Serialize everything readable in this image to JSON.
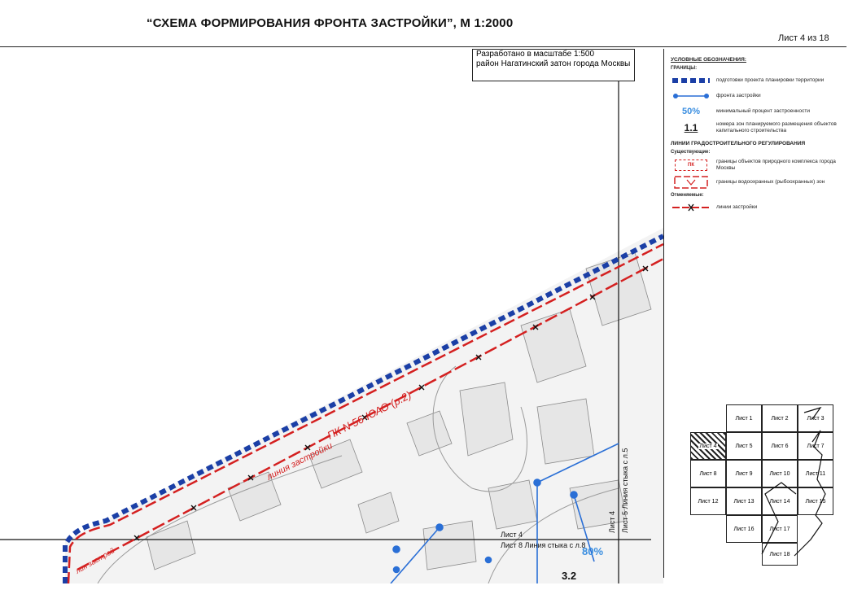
{
  "header": {
    "title": "“СХЕМА ФОРМИРОВАНИЯ ФРОНТА ЗАСТРОЙКИ”, М 1:2000",
    "sheet_number": "Лист 4 из 18"
  },
  "info_box": {
    "line1": "Разработано в масштабе 1:500",
    "line2": "район Нагатинский затон города Москвы"
  },
  "legend": {
    "heading": "УСЛОВНЫЕ ОБОЗНАЧЕНИЯ:",
    "group_boundaries": "ГРАНИЦЫ:",
    "items": [
      {
        "symbol": "blue-dashed-boundary",
        "label": "подготовки проекта планировки территории"
      },
      {
        "symbol": "blue-dot-line",
        "label": "фронта застройки"
      },
      {
        "symbol_text": "50%",
        "label": "минимальный процент застроенности"
      },
      {
        "symbol_text": "1.1",
        "label": "номера зон планируемого размещения объектов капитального строительства"
      }
    ],
    "section_lines": "ЛИНИИ ГРАДОСТРОИТЕЛЬНОГО РЕГУЛИРОВАНИЯ",
    "sub_existing": "Существующие:",
    "existing_items": [
      {
        "symbol_text": "ПК",
        "label": "границы объектов природного комплекса города Москвы"
      },
      {
        "symbol": "water-protection",
        "label": "границы водоохранных (рыбоохранных) зон"
      }
    ],
    "sub_cancelled": "Отменяемые:",
    "cancelled_items": [
      {
        "symbol": "red-cross-line",
        "label": "линии застройки"
      }
    ]
  },
  "map": {
    "pk_label": "ПК N 56-ЮАО (р.2)",
    "building_line_label": "линия застройки",
    "building_line_label2": "лин застрой",
    "joint_h_top": "Лист 4",
    "joint_h_bottom": "Лист 8 Линия стыка с л.8",
    "joint_v_left": "Лист 4",
    "joint_v_right": "Лист 5 Линия стыка с л.5",
    "percent": "80%",
    "zone": "3.2"
  },
  "sheet_index": {
    "cells": [
      "Лист 1",
      "Лист 2",
      "Лист 3",
      "Лист 4",
      "Лист 5",
      "Лист 6",
      "Лист 7",
      "Лист 8",
      "Лист 9",
      "Лист 10",
      "Лист 11",
      "Лист 12",
      "Лист 13",
      "Лист 14",
      "Лист 15",
      "Лист 16",
      "Лист 17",
      "Лист 18"
    ],
    "current": "Лист 4"
  },
  "colors": {
    "boundary_blue": "#1b3fa6",
    "line_red": "#d42020",
    "front_blue": "#2a6fd6",
    "percent_blue": "#3a8ee0"
  }
}
